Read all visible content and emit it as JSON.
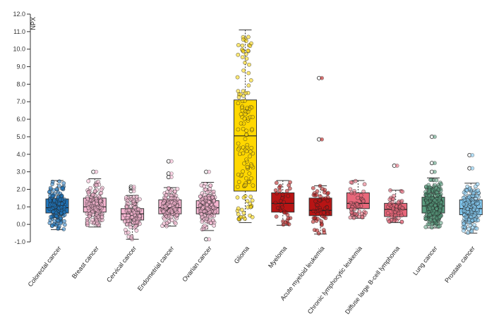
{
  "chart_data": {
    "type": "box",
    "title": "",
    "xlabel": "",
    "ylabel": "NPX",
    "ylim": [
      -1.0,
      12.0
    ],
    "yticks": [
      "-1.0",
      "0.0",
      "1.0",
      "2.0",
      "3.0",
      "4.0",
      "5.0",
      "6.0",
      "7.0",
      "8.0",
      "9.0",
      "10.0",
      "11.0",
      "12.0"
    ],
    "grid": false,
    "legend": null,
    "categories": [
      "Colorectal cancer",
      "Breast cancer",
      "Cervical cancer",
      "Endometrial cancer",
      "Ovarian cancer",
      "Glioma",
      "Myeloma",
      "Acute myeloid leukemia",
      "Chronic lymphocytic leukemia",
      "Diffuse large B-cell lymphoma",
      "Lung cancer",
      "Prostate cancer"
    ],
    "series": [
      {
        "name": "Colorectal cancer",
        "color": "#1f78c1",
        "min": -0.3,
        "q1": 0.65,
        "median": 0.95,
        "q3": 1.45,
        "max": 2.5,
        "outliers": [],
        "n": 180
      },
      {
        "name": "Breast cancer",
        "color": "#f7b6d2",
        "min": -0.15,
        "q1": 0.7,
        "median": 1.0,
        "q3": 1.5,
        "max": 2.6,
        "outliers": [
          3.0
        ],
        "n": 150
      },
      {
        "name": "Cervical cancer",
        "color": "#f7b6d2",
        "min": -0.85,
        "q1": 0.25,
        "median": 0.6,
        "q3": 0.9,
        "max": 1.65,
        "outliers": [
          1.9,
          2.05,
          2.15
        ],
        "n": 120
      },
      {
        "name": "Endometrial cancer",
        "color": "#f7b6d2",
        "min": -0.1,
        "q1": 0.6,
        "median": 0.95,
        "q3": 1.4,
        "max": 2.1,
        "outliers": [
          2.7,
          2.9,
          3.6
        ],
        "n": 130
      },
      {
        "name": "Ovarian cancer",
        "color": "#f7b6d2",
        "min": -0.35,
        "q1": 0.6,
        "median": 0.95,
        "q3": 1.35,
        "max": 2.4,
        "outliers": [
          3.0,
          -0.85
        ],
        "n": 160
      },
      {
        "name": "Glioma",
        "color": "#ffd700",
        "min": 0.1,
        "q1": 1.9,
        "median": 5.05,
        "q3": 7.1,
        "max": 11.1,
        "outliers": [],
        "n": 130
      },
      {
        "name": "Myeloma",
        "color": "#b81414",
        "min": -0.05,
        "q1": 0.7,
        "median": 1.2,
        "q3": 1.8,
        "max": 2.5,
        "outliers": [],
        "n": 35
      },
      {
        "name": "Acute myeloid leukemia",
        "color": "#b81414",
        "min": -0.55,
        "q1": 0.5,
        "median": 0.8,
        "q3": 1.5,
        "max": 2.2,
        "outliers": [
          4.85,
          8.35
        ],
        "n": 55
      },
      {
        "name": "Chronic lymphocytic leukemia",
        "color": "#e8677a",
        "min": 0.35,
        "q1": 0.9,
        "median": 1.2,
        "q3": 1.8,
        "max": 2.5,
        "outliers": [],
        "n": 50
      },
      {
        "name": "Diffuse large B-cell lymphoma",
        "color": "#e8677a",
        "min": 0.1,
        "q1": 0.45,
        "median": 0.85,
        "q3": 1.2,
        "max": 1.95,
        "outliers": [
          3.35
        ],
        "n": 55
      },
      {
        "name": "Lung cancer",
        "color": "#5a9e80",
        "min": -0.2,
        "q1": 0.65,
        "median": 1.05,
        "q3": 1.55,
        "max": 2.65,
        "outliers": [
          3.0,
          3.5,
          5.0
        ],
        "n": 260
      },
      {
        "name": "Prostate cancer",
        "color": "#86cdf5",
        "min": -0.5,
        "q1": 0.55,
        "median": 0.9,
        "q3": 1.4,
        "max": 2.35,
        "outliers": [
          3.2,
          3.95
        ],
        "n": 170
      }
    ]
  }
}
